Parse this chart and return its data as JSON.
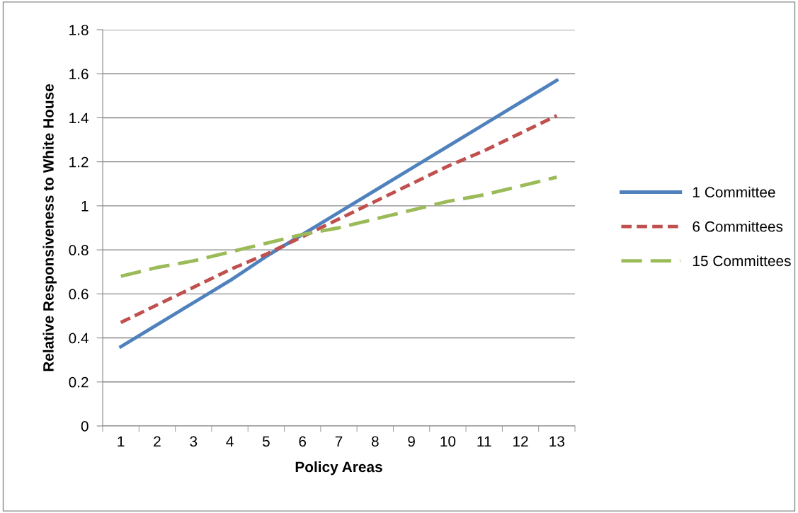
{
  "chart_data": {
    "type": "line",
    "xlabel": "Policy Areas",
    "ylabel": "Relative Responsiveness to White House",
    "categories": [
      "1",
      "2",
      "3",
      "4",
      "5",
      "6",
      "7",
      "8",
      "9",
      "10",
      "11",
      "12",
      "13"
    ],
    "series": [
      {
        "name": "1 Committee",
        "color": "#4f81bd",
        "line_style": "solid",
        "values": [
          0.36,
          0.46,
          0.56,
          0.66,
          0.77,
          0.87,
          0.97,
          1.07,
          1.17,
          1.27,
          1.37,
          1.47,
          1.57
        ]
      },
      {
        "name": "6 Committees",
        "color": "#c0504d",
        "line_style": "dashed",
        "values": [
          0.47,
          0.55,
          0.63,
          0.71,
          0.78,
          0.86,
          0.94,
          1.02,
          1.1,
          1.18,
          1.25,
          1.33,
          1.41
        ]
      },
      {
        "name": "15 Committees",
        "color": "#9bbb59",
        "line_style": "dashed",
        "values": [
          0.68,
          0.72,
          0.75,
          0.79,
          0.83,
          0.87,
          0.9,
          0.94,
          0.98,
          1.02,
          1.05,
          1.09,
          1.13
        ]
      }
    ],
    "ylim": [
      0,
      1.8
    ],
    "yticks": [
      0,
      0.2,
      0.4,
      0.6,
      0.8,
      1,
      1.2,
      1.4,
      1.6,
      1.8
    ],
    "grid": "y",
    "legend": "right",
    "marker": "none"
  }
}
